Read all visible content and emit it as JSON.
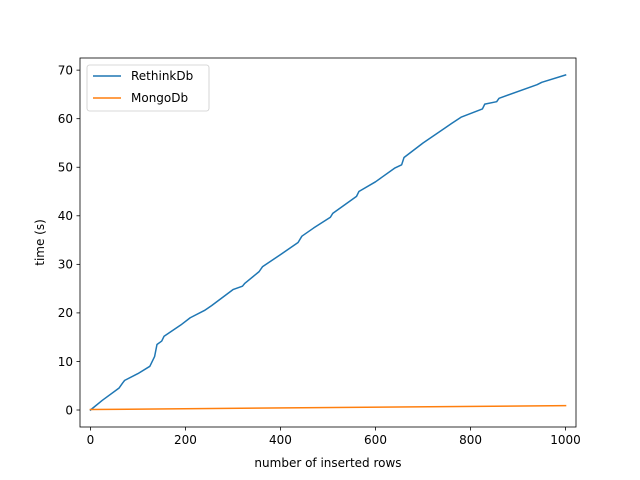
{
  "chart_data": {
    "type": "line",
    "title": "",
    "xlabel": "number of inserted rows",
    "ylabel": "time (s)",
    "xlim": [
      -22,
      1022
    ],
    "ylim": [
      -3.5,
      72.5
    ],
    "xticks": [
      0,
      200,
      400,
      600,
      800,
      1000
    ],
    "yticks": [
      0,
      10,
      20,
      30,
      40,
      50,
      60,
      70
    ],
    "xtick_labels": [
      "0",
      "200",
      "400",
      "600",
      "800",
      "1000"
    ],
    "ytick_labels": [
      "0",
      "10",
      "20",
      "30",
      "40",
      "50",
      "60",
      "70"
    ],
    "legend_position": "top-left",
    "series": [
      {
        "name": "RethinkDb",
        "color": "#1f77b4",
        "x": [
          0,
          25,
          60,
          68,
          72,
          100,
          125,
          135,
          140,
          150,
          155,
          190,
          210,
          240,
          255,
          300,
          320,
          325,
          355,
          362,
          400,
          437,
          445,
          470,
          505,
          510,
          560,
          565,
          600,
          640,
          655,
          660,
          700,
          760,
          780,
          825,
          830,
          855,
          860,
          940,
          950,
          1000
        ],
        "y": [
          0,
          2,
          4.5,
          5.6,
          6.1,
          7.5,
          9,
          11,
          13.5,
          14.2,
          15.2,
          17.5,
          19,
          20.5,
          21.5,
          24.8,
          25.5,
          26.1,
          28.5,
          29.5,
          32,
          34.5,
          35.8,
          37.5,
          39.7,
          40.5,
          44,
          45,
          47,
          49.8,
          50.5,
          52,
          55,
          59,
          60.3,
          62,
          63,
          63.5,
          64.2,
          67,
          67.5,
          69
        ]
      },
      {
        "name": "MongoDb",
        "color": "#ff7f0e",
        "x": [
          0,
          1000
        ],
        "y": [
          0.1,
          0.9
        ]
      }
    ]
  }
}
